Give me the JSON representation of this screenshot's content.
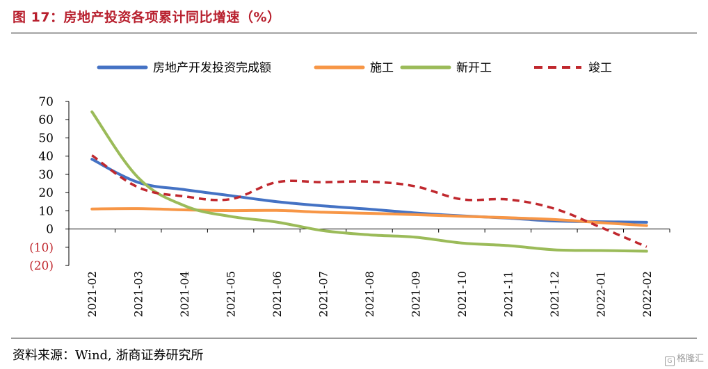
{
  "header": {
    "title": "图 17：房地产投资各项累计同比增速（%）"
  },
  "footer": {
    "source": "资料来源：Wind, 浙商证券研究所",
    "watermark": "格隆汇"
  },
  "chart_data": {
    "type": "line",
    "title": "图 17：房地产投资各项累计同比增速（%）",
    "xlabel": "",
    "ylabel": "",
    "categories": [
      "2021-02",
      "2021-03",
      "2021-04",
      "2021-05",
      "2021-06",
      "2021-07",
      "2021-08",
      "2021-09",
      "2021-10",
      "2021-11",
      "2021-12",
      "2022-01",
      "2022-02"
    ],
    "ylim": [
      -20,
      70
    ],
    "yticks": [
      70,
      60,
      50,
      40,
      30,
      20,
      10,
      0,
      -10,
      -20
    ],
    "ytick_labels": [
      "70",
      "60",
      "50",
      "40",
      "30",
      "20",
      "10",
      "0",
      "(10)",
      "(20)"
    ],
    "negative_label_color": "#c0282e",
    "legend_position": "top",
    "grid": false,
    "series": [
      {
        "name": "房地产开发投资完成额",
        "color": "#4472c4",
        "style": "solid",
        "values": [
          38.3,
          25.6,
          21.6,
          18.3,
          15.0,
          12.7,
          10.9,
          8.8,
          7.2,
          6.0,
          4.4,
          4.0,
          3.7
        ]
      },
      {
        "name": "施工",
        "color": "#f79646",
        "style": "solid",
        "values": [
          11.0,
          11.2,
          10.5,
          10.1,
          10.2,
          9.2,
          8.6,
          7.9,
          7.0,
          6.2,
          5.2,
          3.5,
          1.9
        ]
      },
      {
        "name": "新开工",
        "color": "#9bbb59",
        "style": "solid",
        "values": [
          64.3,
          28.2,
          12.8,
          6.9,
          3.8,
          -0.9,
          -3.2,
          -4.5,
          -7.7,
          -9.1,
          -11.4,
          -11.8,
          -12.2
        ]
      },
      {
        "name": "竣工",
        "color": "#c0282e",
        "style": "dashed",
        "values": [
          40.4,
          22.9,
          17.9,
          16.4,
          25.7,
          25.7,
          26.0,
          23.4,
          16.3,
          16.2,
          11.2,
          1.0,
          -9.8
        ]
      }
    ]
  }
}
